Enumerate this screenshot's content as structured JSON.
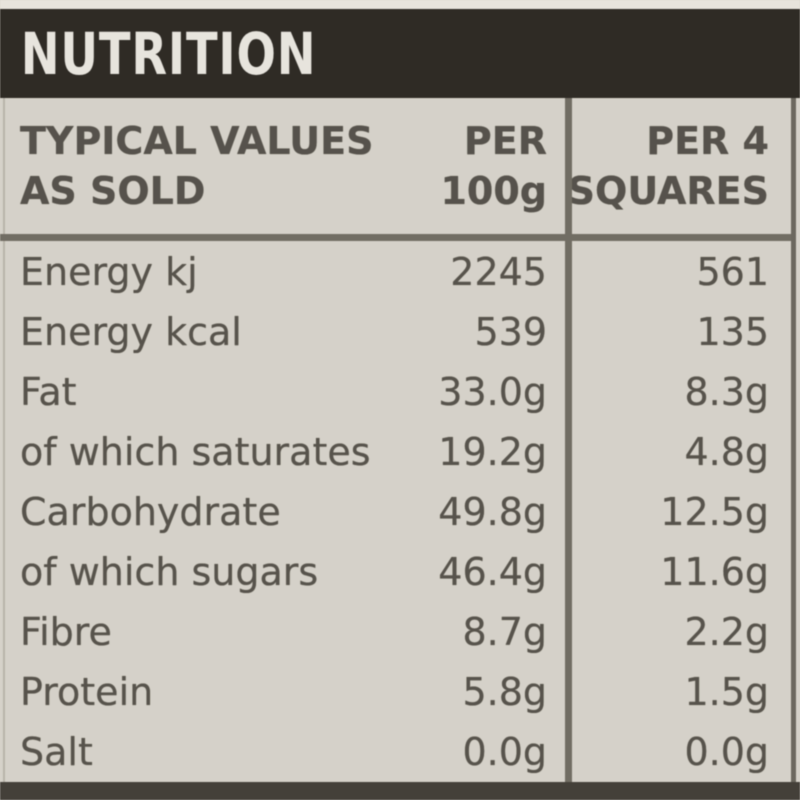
{
  "nutrition_label": {
    "title": "NUTRITION",
    "header": {
      "row_label_line1": "TYPICAL VALUES",
      "row_label_line2": "AS SOLD",
      "per_100g_line1": "PER",
      "per_100g_line2": "100g",
      "per_4_squares_line1": "PER 4",
      "per_4_squares_line2": "SQUARES"
    },
    "rows": [
      {
        "label": "Energy kj",
        "per_100g": "2245",
        "per_4_squares": "561"
      },
      {
        "label": "Energy kcal",
        "per_100g": "539",
        "per_4_squares": "135"
      },
      {
        "label": "Fat",
        "per_100g": "33.0g",
        "per_4_squares": "8.3g"
      },
      {
        "label": "of which saturates",
        "per_100g": "19.2g",
        "per_4_squares": "4.8g"
      },
      {
        "label": "Carbohydrate",
        "per_100g": "49.8g",
        "per_4_squares": "12.5g"
      },
      {
        "label": "of which sugars",
        "per_100g": "46.4g",
        "per_4_squares": "11.6g"
      },
      {
        "label": "Fibre",
        "per_100g": "8.7g",
        "per_4_squares": "2.2g"
      },
      {
        "label": "Protein",
        "per_100g": "5.8g",
        "per_4_squares": "1.5g"
      },
      {
        "label": "Salt",
        "per_100g": "0.0g",
        "per_4_squares": "0.0g"
      }
    ],
    "colors": {
      "title_bar": "#2c2822",
      "title_text": "#eae7e0",
      "table_background": "#d8d4cb",
      "body_text": "#56524a",
      "rule": "#716c62",
      "bottom_bar": "#423e37"
    }
  }
}
